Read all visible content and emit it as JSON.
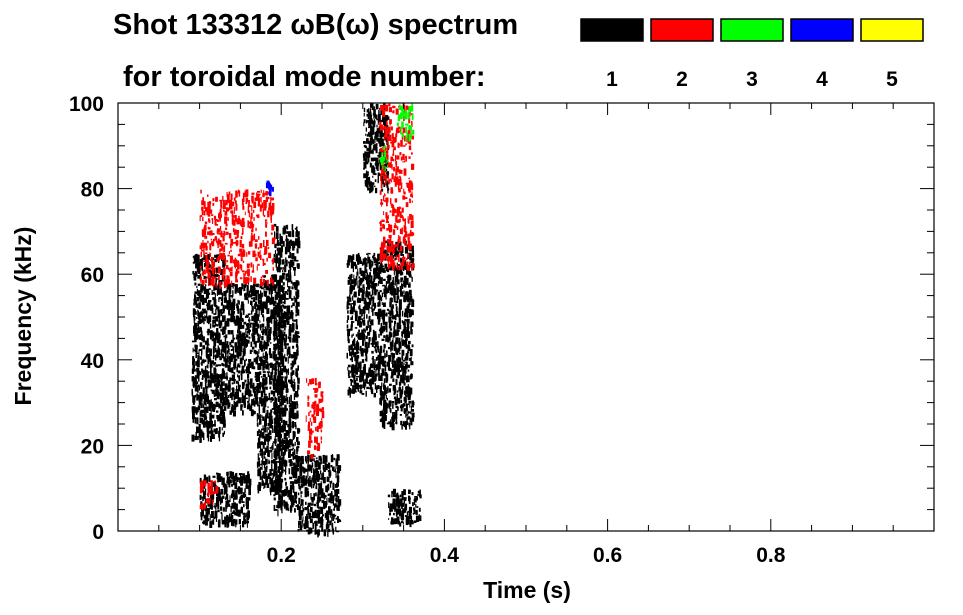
{
  "chart_data": {
    "type": "heatmap",
    "title": "Shot 133312 ωB(ω) spectrum",
    "subtitle": "for toroidal mode number:",
    "xlabel": "Time (s)",
    "ylabel": "Frequency (kHz)",
    "xlim": [
      0.0,
      1.0
    ],
    "ylim": [
      0,
      100
    ],
    "x_ticks": [
      {
        "value": 0.2,
        "label": "0.2"
      },
      {
        "value": 0.4,
        "label": "0.4"
      },
      {
        "value": 0.6,
        "label": "0.6"
      },
      {
        "value": 0.8,
        "label": "0.8"
      }
    ],
    "y_ticks": [
      {
        "value": 0,
        "label": "0"
      },
      {
        "value": 20,
        "label": "20"
      },
      {
        "value": 40,
        "label": "40"
      },
      {
        "value": 60,
        "label": "60"
      },
      {
        "value": 80,
        "label": "80"
      },
      {
        "value": 100,
        "label": "100"
      }
    ],
    "legend": {
      "placement": "top-right",
      "entries": [
        {
          "mode": 1,
          "label": "1",
          "color": "#000000"
        },
        {
          "mode": 2,
          "label": "2",
          "color": "#ff0000"
        },
        {
          "mode": 3,
          "label": "3",
          "color": "#00ff00"
        },
        {
          "mode": 4,
          "label": "4",
          "color": "#0000ff"
        },
        {
          "mode": 5,
          "label": "5",
          "color": "#ffff00"
        }
      ]
    },
    "grid": false,
    "regions": [
      {
        "mode": 1,
        "t": [
          0.09,
          0.13
        ],
        "f": [
          22,
          65
        ]
      },
      {
        "mode": 1,
        "t": [
          0.13,
          0.17
        ],
        "f": [
          28,
          58
        ]
      },
      {
        "mode": 1,
        "t": [
          0.1,
          0.16
        ],
        "f": [
          2,
          14
        ]
      },
      {
        "mode": 1,
        "t": [
          0.17,
          0.2
        ],
        "f": [
          10,
          60
        ]
      },
      {
        "mode": 1,
        "t": [
          0.19,
          0.22
        ],
        "f": [
          5,
          72
        ]
      },
      {
        "mode": 1,
        "t": [
          0.22,
          0.27
        ],
        "f": [
          0,
          18
        ]
      },
      {
        "mode": 1,
        "t": [
          0.28,
          0.32
        ],
        "f": [
          32,
          65
        ]
      },
      {
        "mode": 1,
        "t": [
          0.32,
          0.36
        ],
        "f": [
          25,
          68
        ]
      },
      {
        "mode": 1,
        "t": [
          0.33,
          0.37
        ],
        "f": [
          2,
          10
        ]
      },
      {
        "mode": 1,
        "t": [
          0.3,
          0.33
        ],
        "f": [
          80,
          100
        ]
      },
      {
        "mode": 2,
        "t": [
          0.1,
          0.19
        ],
        "f": [
          58,
          80
        ]
      },
      {
        "mode": 2,
        "t": [
          0.23,
          0.25
        ],
        "f": [
          18,
          36
        ]
      },
      {
        "mode": 2,
        "t": [
          0.32,
          0.36
        ],
        "f": [
          62,
          100
        ]
      },
      {
        "mode": 2,
        "t": [
          0.1,
          0.12
        ],
        "f": [
          6,
          12
        ]
      },
      {
        "mode": 3,
        "t": [
          0.34,
          0.36
        ],
        "f": [
          92,
          100
        ]
      },
      {
        "mode": 3,
        "t": [
          0.32,
          0.33
        ],
        "f": [
          85,
          90
        ]
      },
      {
        "mode": 4,
        "t": [
          0.18,
          0.19
        ],
        "f": [
          79,
          82
        ]
      }
    ]
  }
}
